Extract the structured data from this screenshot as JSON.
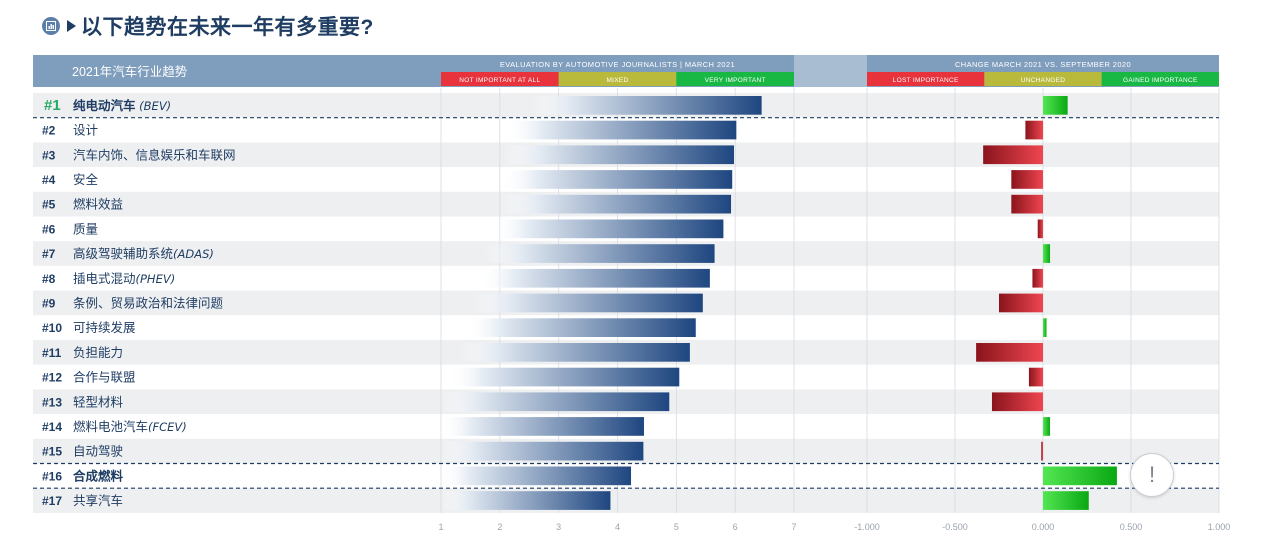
{
  "page": {
    "title": "以下趋势在未来一年有多重要?"
  },
  "chart_data": [
    {
      "type": "bar",
      "orientation": "horizontal",
      "header": "EVALUATION BY AUTOMOTIVE JOURNALISTS | MARCH 2021",
      "row_header": "2021年汽车行业趋势",
      "scale_labels": [
        "NOT IMPORTANT AT ALL",
        "MIXED",
        "VERY IMPORTANT"
      ],
      "scale_colors": [
        "#e8323c",
        "#b9b93c",
        "#19b845"
      ],
      "xlim": [
        1,
        7
      ],
      "xticks": [
        "1",
        "2",
        "3",
        "4",
        "5",
        "6",
        "7"
      ],
      "grid": true,
      "categories": [
        {
          "rank": "#1",
          "label": "纯电动汽车",
          "suffix": "(BEV)",
          "bold": true
        },
        {
          "rank": "#2",
          "label": "设计",
          "suffix": ""
        },
        {
          "rank": "#3",
          "label": "汽车内饰、信息娱乐和车联网",
          "suffix": ""
        },
        {
          "rank": "#4",
          "label": "安全",
          "suffix": ""
        },
        {
          "rank": "#5",
          "label": "燃料效益",
          "suffix": ""
        },
        {
          "rank": "#6",
          "label": "质量",
          "suffix": ""
        },
        {
          "rank": "#7",
          "label": "高级驾驶辅助系统",
          "suffix": "(ADAS)"
        },
        {
          "rank": "#8",
          "label": "插电式混动",
          "suffix": "(PHEV)"
        },
        {
          "rank": "#9",
          "label": "条例、贸易政治和法律问题",
          "suffix": ""
        },
        {
          "rank": "#10",
          "label": "可持续发展",
          "suffix": ""
        },
        {
          "rank": "#11",
          "label": "负担能力",
          "suffix": ""
        },
        {
          "rank": "#12",
          "label": "合作与联盟",
          "suffix": ""
        },
        {
          "rank": "#13",
          "label": "轻型材料",
          "suffix": ""
        },
        {
          "rank": "#14",
          "label": "燃料电池汽车",
          "suffix": "(FCEV)"
        },
        {
          "rank": "#15",
          "label": "自动驾驶",
          "suffix": ""
        },
        {
          "rank": "#16",
          "label": "合成燃料",
          "suffix": "",
          "bold": true
        },
        {
          "rank": "#17",
          "label": "共享汽车",
          "suffix": ""
        }
      ],
      "values": [
        6.45,
        6.02,
        5.98,
        5.95,
        5.93,
        5.8,
        5.65,
        5.57,
        5.45,
        5.33,
        5.23,
        5.05,
        4.88,
        4.45,
        4.44,
        4.23,
        3.88
      ]
    },
    {
      "type": "bar",
      "orientation": "horizontal",
      "header": "CHANGE MARCH 2021 VS. SEPTEMBER 2020",
      "scale_labels": [
        "LOST IMPORTANCE",
        "UNCHANGED",
        "GAINED IMPORTANCE"
      ],
      "scale_colors": [
        "#e8323c",
        "#b9b93c",
        "#19b845"
      ],
      "xlim": [
        -1,
        1
      ],
      "xticks": [
        "-1.000",
        "-0.500",
        "0.000",
        "0.500",
        "1.000"
      ],
      "grid": true,
      "positive_color": "#1ec21e",
      "negative_color": "#c8232f",
      "values": [
        0.14,
        -0.1,
        -0.34,
        -0.18,
        -0.18,
        -0.03,
        0.04,
        -0.06,
        -0.25,
        0.02,
        -0.38,
        -0.08,
        -0.29,
        0.04,
        -0.01,
        0.42,
        0.26
      ]
    }
  ]
}
